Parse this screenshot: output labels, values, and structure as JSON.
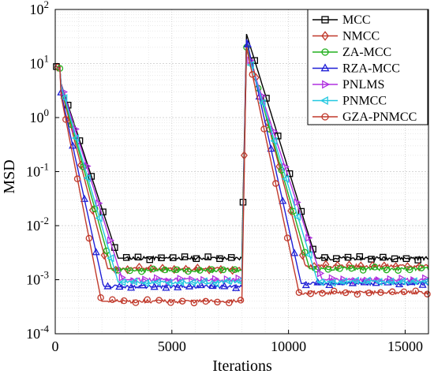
{
  "chart_data": {
    "type": "line",
    "title": "",
    "xlabel": "Iterations",
    "ylabel": "MSD",
    "xlim": [
      0,
      16000
    ],
    "ylim_exp": [
      -4,
      2
    ],
    "yscale": "log",
    "grid": true,
    "legend_position": "top-right",
    "x_ticks": [
      {
        "value": 0,
        "label": "0"
      },
      {
        "value": 5000,
        "label": "5000"
      },
      {
        "value": 10000,
        "label": "10000"
      },
      {
        "value": 15000,
        "label": "15000"
      }
    ],
    "y_ticks": [
      {
        "exp": -4,
        "base": "10",
        "sup": "-4"
      },
      {
        "exp": -3,
        "base": "10",
        "sup": "-3"
      },
      {
        "exp": -2,
        "base": "10",
        "sup": "-2"
      },
      {
        "exp": -1,
        "base": "10",
        "sup": "-1"
      },
      {
        "exp": 0,
        "base": "10",
        "sup": "0"
      },
      {
        "exp": 1,
        "base": "10",
        "sup": "1"
      },
      {
        "exp": 2,
        "base": "10",
        "sup": "2"
      }
    ],
    "series": [
      {
        "name": "MCC",
        "color": "#000000",
        "marker": "square",
        "start": 9,
        "peak": 35,
        "t90_1": 3000,
        "t90_2": 11300,
        "steady1": 0.0025,
        "steady2": 0.0025
      },
      {
        "name": "NMCC",
        "color": "#c0392b",
        "marker": "diamond",
        "start": 9,
        "peak": 25,
        "t90_1": 2500,
        "t90_2": 10800,
        "steady1": 0.0016,
        "steady2": 0.0018
      },
      {
        "name": "ZA-MCC",
        "color": "#22b01e",
        "marker": "circle",
        "start": 9,
        "peak": 20,
        "t90_1": 2700,
        "t90_2": 11000,
        "steady1": 0.0015,
        "steady2": 0.0016
      },
      {
        "name": "RZA-MCC",
        "color": "#1f1fd6",
        "marker": "triangle-up",
        "start": 9,
        "peak": 28,
        "t90_1": 2300,
        "t90_2": 10600,
        "steady1": 0.00075,
        "steady2": 0.00085
      },
      {
        "name": "PNLMS",
        "color": "#b030e0",
        "marker": "triangle-right",
        "start": 9,
        "peak": 18,
        "t90_1": 3200,
        "t90_2": 11600,
        "steady1": 0.001,
        "steady2": 0.001
      },
      {
        "name": "PNMCC",
        "color": "#22c8e0",
        "marker": "triangle-left",
        "start": 9,
        "peak": 18,
        "t90_1": 3000,
        "t90_2": 11400,
        "steady1": 0.0009,
        "steady2": 0.0009
      },
      {
        "name": "GZA-PNMCC",
        "color": "#c0392b",
        "marker": "circle",
        "start": 9,
        "peak": 20,
        "t90_1": 2200,
        "t90_2": 10500,
        "steady1": 0.0004,
        "steady2": 0.00058
      }
    ],
    "change_point": 8000
  }
}
